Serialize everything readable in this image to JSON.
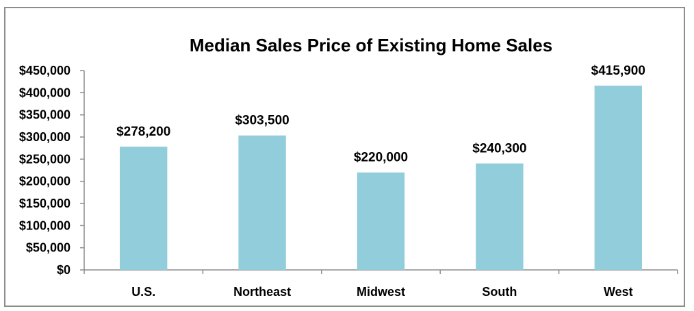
{
  "chart_data": {
    "type": "bar",
    "title": "Median Sales Price of Existing Home Sales",
    "xlabel": "",
    "ylabel": "",
    "categories": [
      "U.S.",
      "Northeast",
      "Midwest",
      "South",
      "West"
    ],
    "values": [
      278200,
      303500,
      220000,
      240300,
      415900
    ],
    "data_labels": [
      "$278,200",
      "$303,500",
      "$220,000",
      "$240,300",
      "$415,900"
    ],
    "ylim": [
      0,
      450000
    ],
    "yticks": [
      0,
      50000,
      100000,
      150000,
      200000,
      250000,
      300000,
      350000,
      400000,
      450000
    ],
    "ytick_labels": [
      "$0",
      "$50,000",
      "$100,000",
      "$150,000",
      "$200,000",
      "$250,000",
      "$300,000",
      "$350,000",
      "$400,000",
      "$450,000"
    ],
    "grid": false,
    "legend": "none",
    "colors": {
      "bar": "#92CDDC",
      "axis": "#8c8c8c",
      "text": "#000000"
    }
  }
}
